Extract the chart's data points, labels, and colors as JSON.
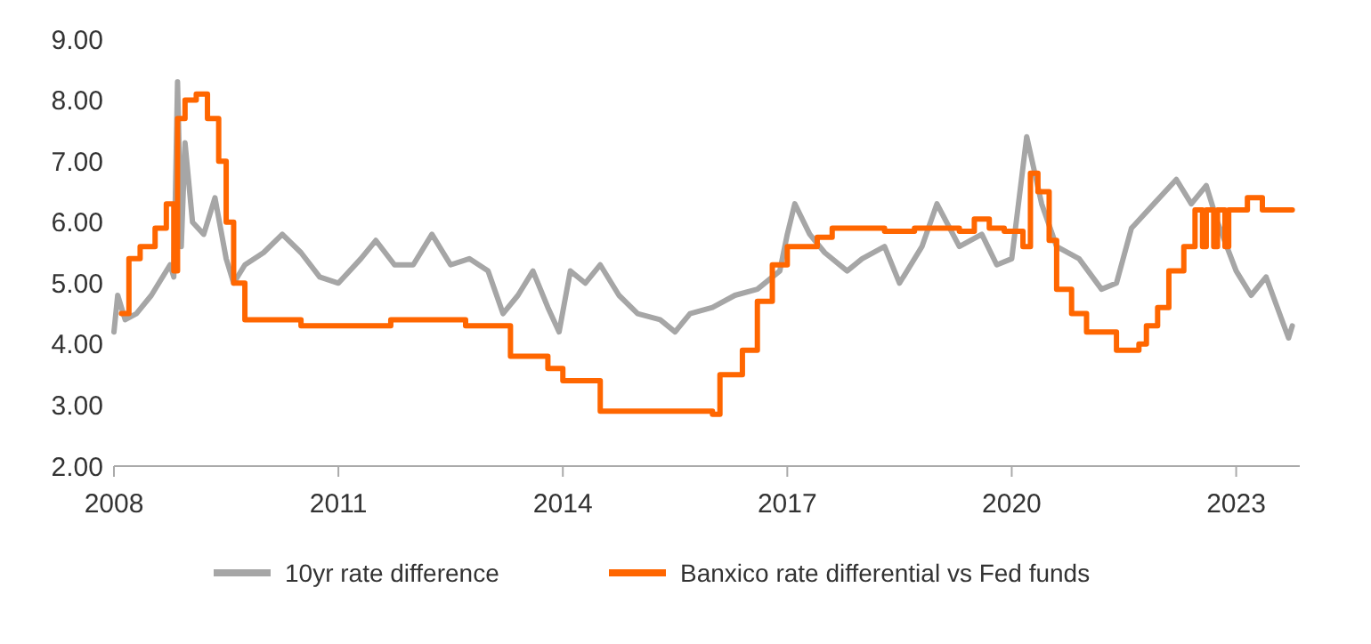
{
  "chart_data": {
    "type": "line",
    "xlim": [
      2008,
      2023.85
    ],
    "xticks": [
      2008,
      2011,
      2014,
      2017,
      2020,
      2023
    ],
    "ylim": [
      2,
      9
    ],
    "yticks": [
      {
        "value": 2,
        "label": "2.00"
      },
      {
        "value": 3,
        "label": "3.00"
      },
      {
        "value": 4,
        "label": "4.00"
      },
      {
        "value": 5,
        "label": "5.00"
      },
      {
        "value": 6,
        "label": "6.00"
      },
      {
        "value": 7,
        "label": "7.00"
      },
      {
        "value": 8,
        "label": "8.00"
      },
      {
        "value": 9,
        "label": "9.00"
      }
    ],
    "grid": false,
    "legend": "bottom",
    "series": [
      {
        "name": "10yr rate difference",
        "color": "#a6a6a6",
        "x": [
          2008,
          2008.05,
          2008.15,
          2008.3,
          2008.5,
          2008.6,
          2008.75,
          2008.8,
          2008.85,
          2008.9,
          2008.95,
          2009.05,
          2009.2,
          2009.35,
          2009.5,
          2009.6,
          2009.75,
          2010,
          2010.25,
          2010.5,
          2010.75,
          2011,
          2011.3,
          2011.5,
          2011.75,
          2012,
          2012.25,
          2012.5,
          2012.75,
          2013,
          2013.2,
          2013.4,
          2013.6,
          2013.8,
          2013.95,
          2014.1,
          2014.3,
          2014.5,
          2014.75,
          2015,
          2015.3,
          2015.5,
          2015.7,
          2016,
          2016.3,
          2016.6,
          2016.9,
          2017,
          2017.1,
          2017.3,
          2017.5,
          2017.8,
          2018,
          2018.3,
          2018.5,
          2018.8,
          2019,
          2019.3,
          2019.6,
          2019.8,
          2020,
          2020.2,
          2020.4,
          2020.6,
          2020.9,
          2021.2,
          2021.4,
          2021.6,
          2021.9,
          2022.2,
          2022.4,
          2022.6,
          2022.75,
          2023,
          2023.2,
          2023.4,
          2023.55,
          2023.7,
          2023.75
        ],
        "values": [
          4.2,
          4.8,
          4.4,
          4.5,
          4.8,
          5.0,
          5.3,
          5.1,
          8.3,
          5.6,
          7.3,
          6.0,
          5.8,
          6.4,
          5.4,
          5.0,
          5.3,
          5.5,
          5.8,
          5.5,
          5.1,
          5.0,
          5.4,
          5.7,
          5.3,
          5.3,
          5.8,
          5.3,
          5.4,
          5.2,
          4.5,
          4.8,
          5.2,
          4.6,
          4.2,
          5.2,
          5.0,
          5.3,
          4.8,
          4.5,
          4.4,
          4.2,
          4.5,
          4.6,
          4.8,
          4.9,
          5.2,
          5.8,
          6.3,
          5.8,
          5.5,
          5.2,
          5.4,
          5.6,
          5.0,
          5.6,
          6.3,
          5.6,
          5.8,
          5.3,
          5.4,
          7.4,
          6.3,
          5.6,
          5.4,
          4.9,
          5.0,
          5.9,
          6.3,
          6.7,
          6.3,
          6.6,
          6.0,
          5.2,
          4.8,
          5.1,
          4.6,
          4.1,
          4.3
        ]
      },
      {
        "name": "Banxico rate differential vs Fed funds",
        "color": "#ff6600",
        "type": "step",
        "x": [
          2008.1,
          2008.2,
          2008.35,
          2008.55,
          2008.7,
          2008.8,
          2008.85,
          2008.95,
          2009.1,
          2009.25,
          2009.4,
          2009.5,
          2009.6,
          2009.75,
          2010.5,
          2011.7,
          2012.7,
          2013.3,
          2013.8,
          2014,
          2014.5,
          2016,
          2016.1,
          2016.4,
          2016.6,
          2016.8,
          2017,
          2017.4,
          2017.6,
          2018.3,
          2018.7,
          2019.3,
          2019.5,
          2019.7,
          2019.9,
          2020.15,
          2020.25,
          2020.35,
          2020.5,
          2020.6,
          2020.8,
          2021,
          2021.4,
          2021.7,
          2021.8,
          2021.95,
          2022.1,
          2022.3,
          2022.45,
          2022.55,
          2022.6,
          2022.7,
          2022.75,
          2022.85,
          2022.9,
          2023,
          2023.15,
          2023.35,
          2023.75
        ],
        "values": [
          4.5,
          5.4,
          5.6,
          5.9,
          6.3,
          5.2,
          7.7,
          8.0,
          8.1,
          7.7,
          7.0,
          6.0,
          5.0,
          4.4,
          4.3,
          4.4,
          4.3,
          3.8,
          3.6,
          3.4,
          2.9,
          2.85,
          3.5,
          3.9,
          4.7,
          5.3,
          5.6,
          5.75,
          5.9,
          5.85,
          5.9,
          5.85,
          6.05,
          5.9,
          5.85,
          5.6,
          6.8,
          6.5,
          5.7,
          4.9,
          4.5,
          4.2,
          3.9,
          4.0,
          4.3,
          4.6,
          5.2,
          5.6,
          6.2,
          5.6,
          6.2,
          5.6,
          6.2,
          5.6,
          6.2,
          6.2,
          6.4,
          6.2,
          6.2
        ]
      }
    ]
  }
}
